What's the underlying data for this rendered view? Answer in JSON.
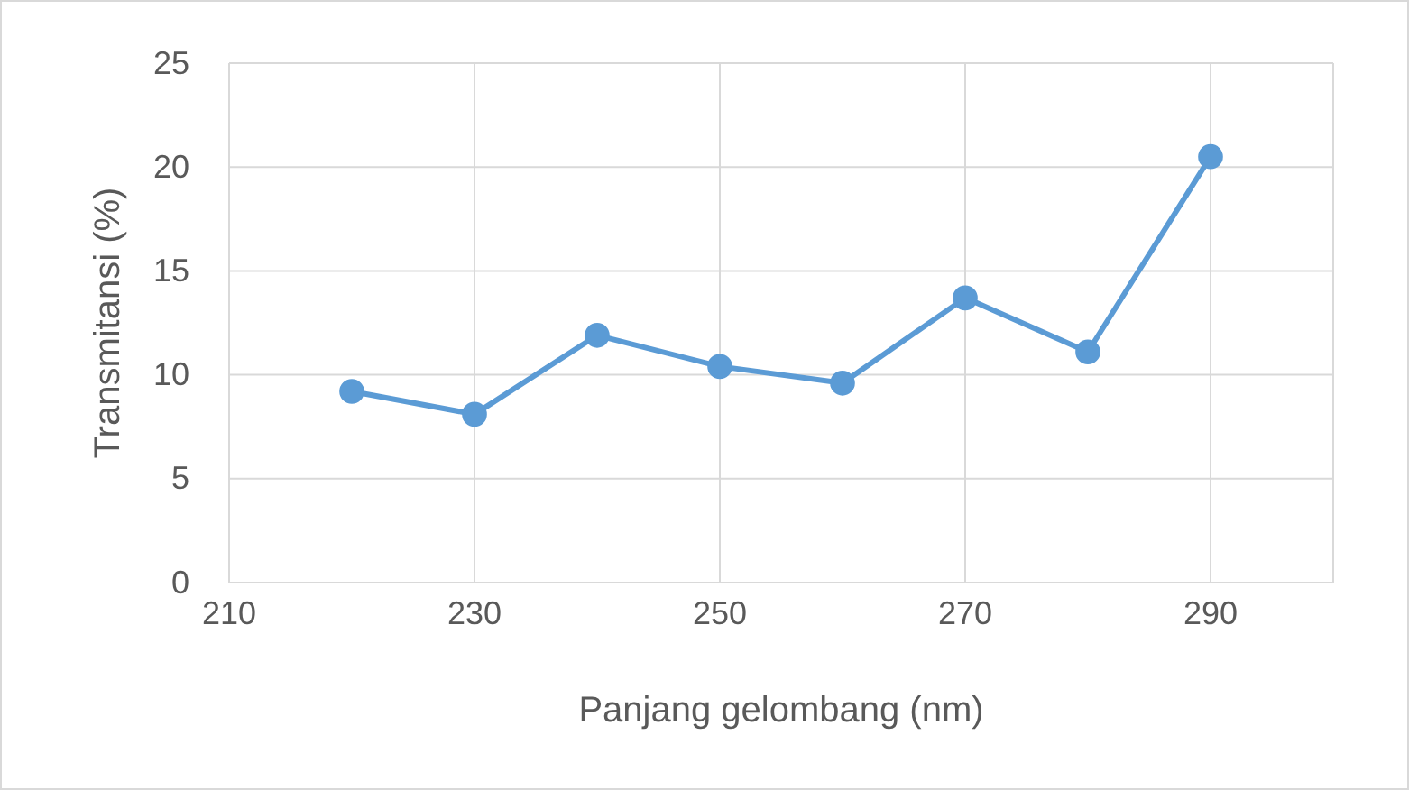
{
  "chart_data": {
    "type": "line",
    "xlabel": "Panjang gelombang (nm)",
    "ylabel": "Transmitansi (%)",
    "x": [
      220,
      230,
      240,
      250,
      260,
      270,
      280,
      290
    ],
    "series": [
      {
        "color": "#5b9bd5",
        "values": [
          9.2,
          8.1,
          11.9,
          10.4,
          9.6,
          13.7,
          11.1,
          20.5
        ]
      }
    ],
    "xlim": [
      210,
      300
    ],
    "xticks": [
      210,
      230,
      250,
      270,
      290,
      {
        "value": 300,
        "label": null
      }
    ],
    "ylim": [
      0,
      25
    ],
    "yticks": [
      0,
      5,
      10,
      15,
      20,
      25
    ],
    "grid": true,
    "marker": "circle",
    "line_style": "solid"
  }
}
